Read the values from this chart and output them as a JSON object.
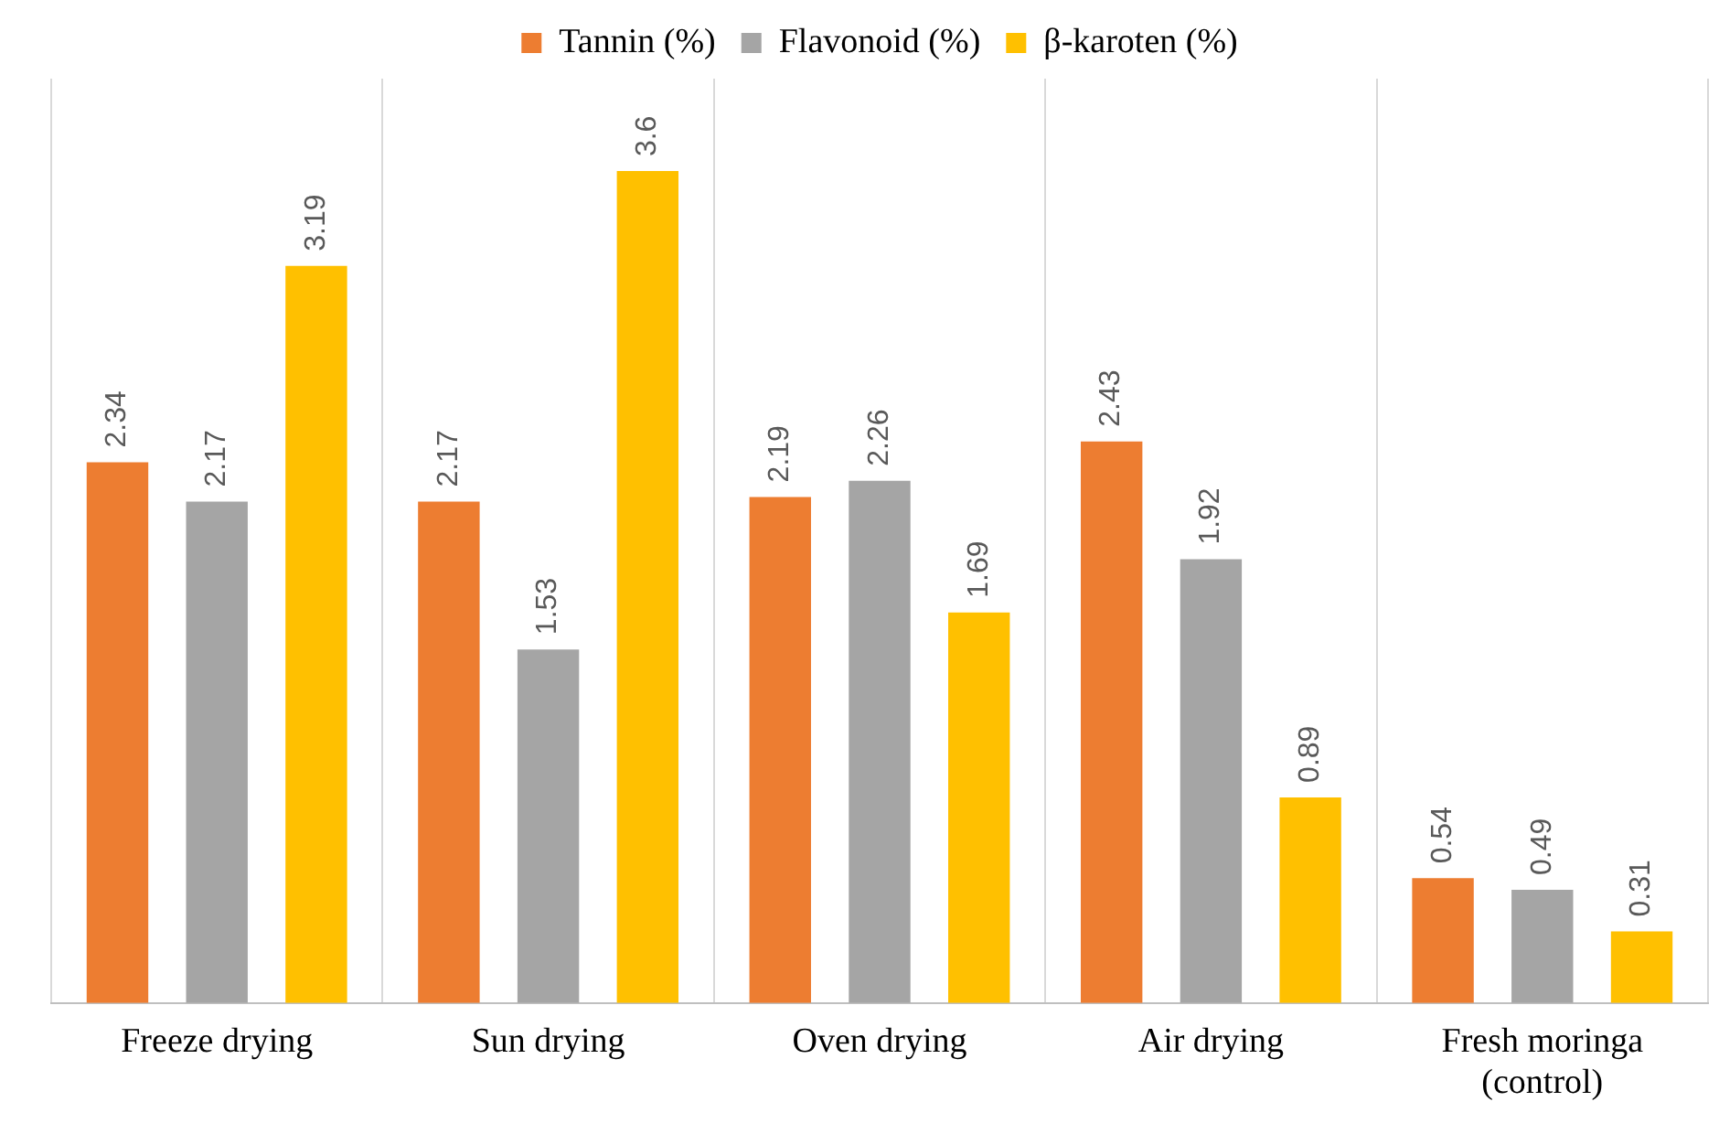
{
  "chart_data": {
    "type": "bar",
    "categories": [
      "Freeze drying",
      "Sun drying",
      "Oven drying",
      "Air drying",
      "Fresh moringa (control)"
    ],
    "series": [
      {
        "name": "Tannin (%)",
        "color": "#ed7d31",
        "values": [
          2.34,
          2.17,
          2.19,
          2.43,
          0.54
        ]
      },
      {
        "name": "Flavonoid (%)",
        "color": "#a5a5a5",
        "values": [
          2.17,
          1.53,
          2.26,
          1.92,
          0.49
        ]
      },
      {
        "name": "β-karoten (%)",
        "color": "#ffc000",
        "values": [
          3.19,
          3.6,
          1.69,
          0.89,
          0.31
        ]
      }
    ],
    "data_labels": true,
    "legend": "top",
    "grid": "x",
    "tick_labels": "x"
  }
}
